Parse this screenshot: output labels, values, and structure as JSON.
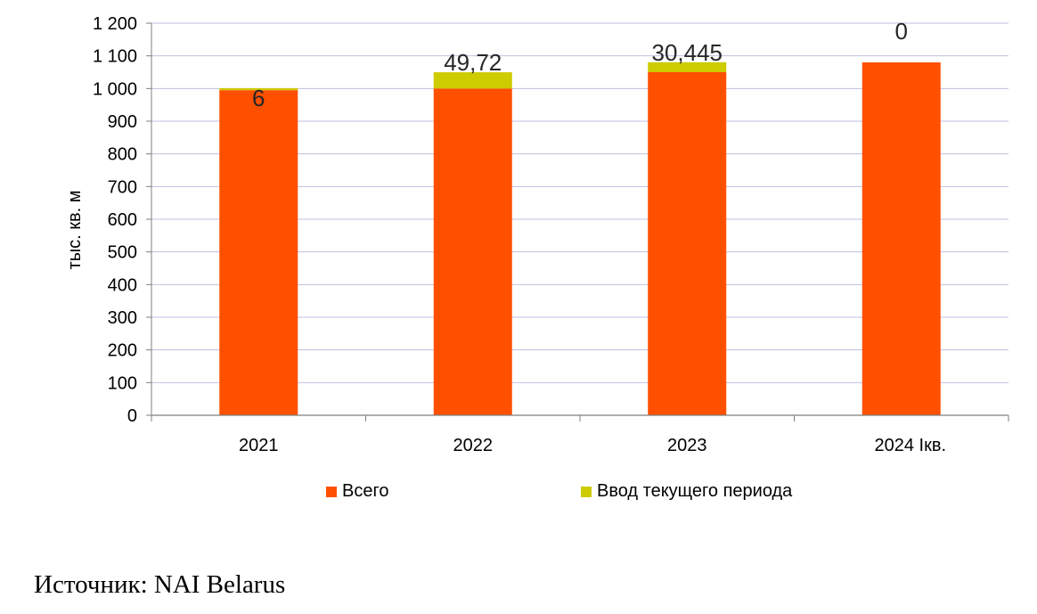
{
  "chart_data": {
    "type": "bar",
    "stacked": true,
    "categories": [
      "2021",
      "2022",
      "2023",
      "2024 Iкв."
    ],
    "series": [
      {
        "name": "Всего",
        "values": [
          995,
          1000,
          1050,
          1080
        ],
        "color": "#FF5000"
      },
      {
        "name": "Ввод текущего периода",
        "values": [
          6,
          49.72,
          30.445,
          0
        ],
        "color": "#CCCC00"
      }
    ],
    "data_labels": [
      "6",
      "49,72",
      "30,445",
      "0"
    ],
    "ylabel": "тыс. кв. м",
    "ylim": [
      0,
      1200
    ],
    "yticks": [
      0,
      100,
      200,
      300,
      400,
      500,
      600,
      700,
      800,
      900,
      1000,
      1100,
      1200
    ],
    "ytick_labels": [
      "0",
      "100",
      "200",
      "300",
      "400",
      "500",
      "600",
      "700",
      "800",
      "900",
      "1 000",
      "1 100",
      "1 200"
    ],
    "grid": true,
    "legend_position": "bottom"
  },
  "source": "Источник: NAI Belarus"
}
